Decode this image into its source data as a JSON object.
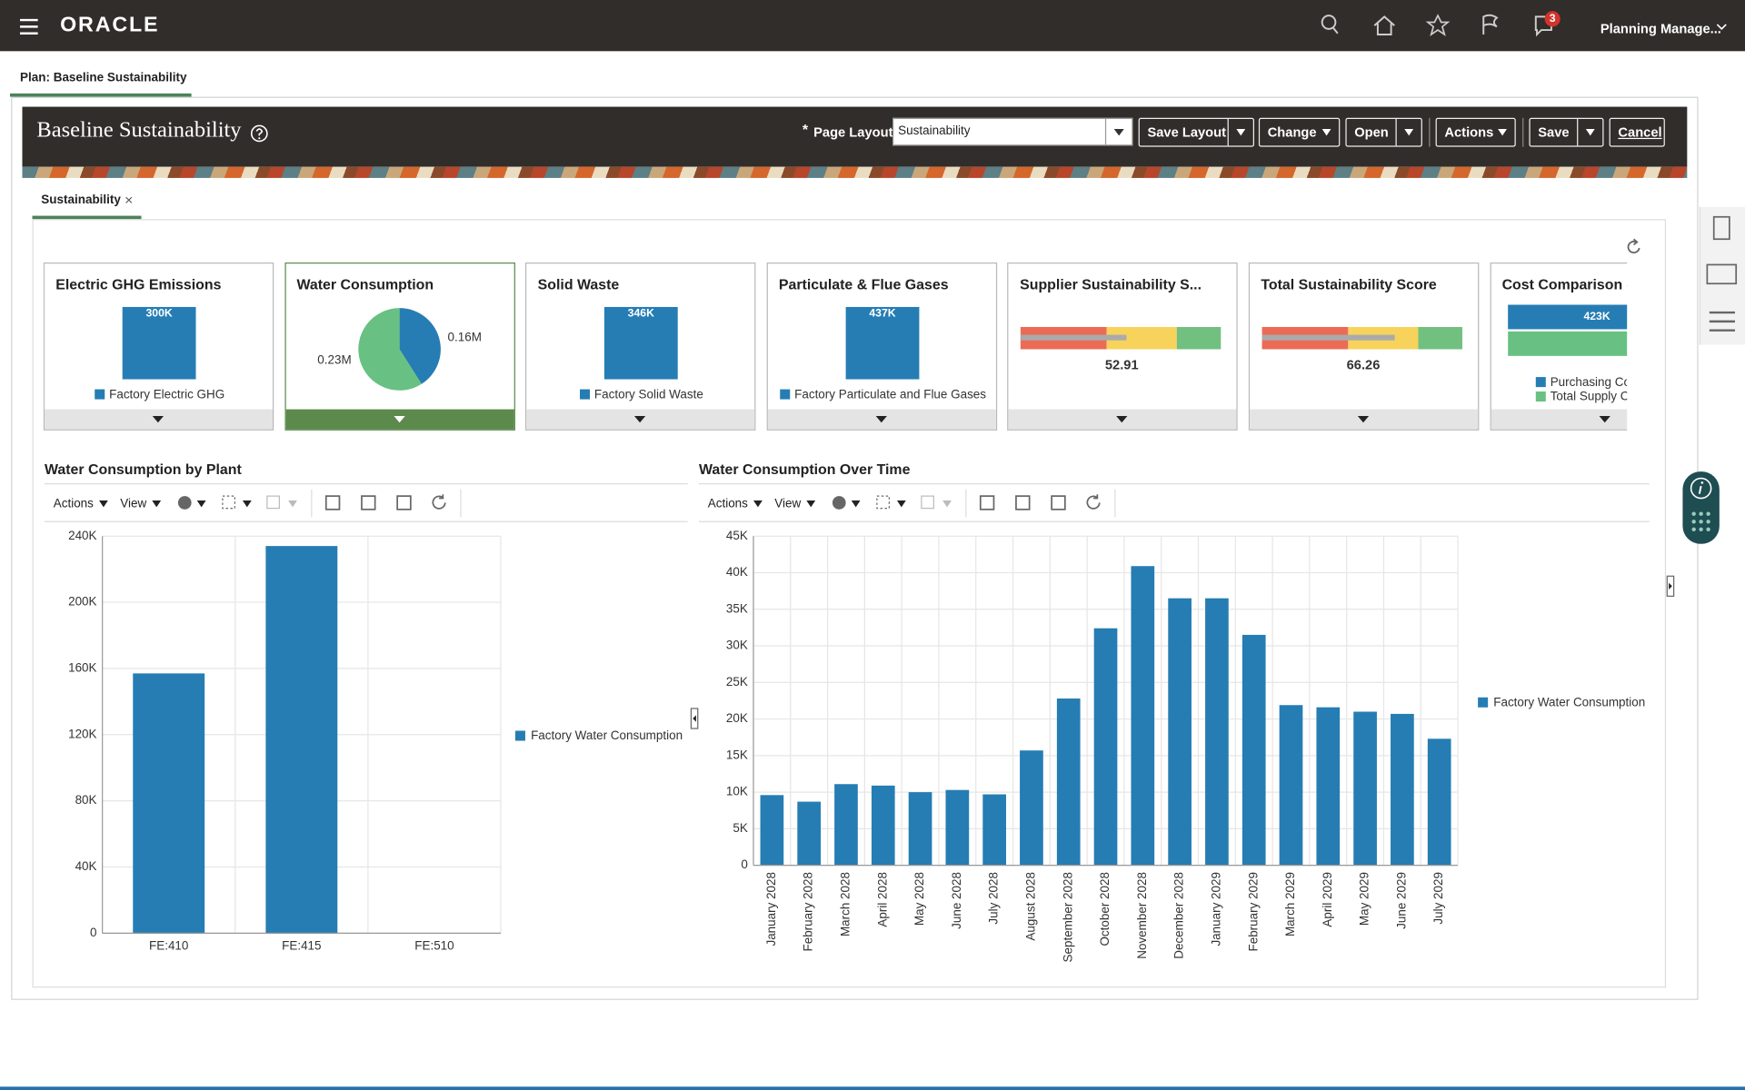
{
  "header": {
    "brand": "ORACLE",
    "notification_count": "3",
    "user": "Planning Manage..."
  },
  "page_tab": "Plan: Baseline Sustainability",
  "toolbar": {
    "title": "Baseline Sustainability",
    "required_marker": "*",
    "page_layout_label": "Page Layout",
    "page_layout_value": "Sustainability",
    "buttons": [
      "Save Layout",
      "Change",
      "Open",
      "Actions",
      "Save",
      "Cancel"
    ]
  },
  "dashboard_tab": "Sustainability",
  "tiles": [
    {
      "title": "Electric GHG Emissions",
      "type": "bar",
      "values": [
        300000
      ],
      "value_labels": [
        "300K"
      ],
      "series_names": [
        "Factory Electric GHG"
      ],
      "colors": [
        "#267db3"
      ]
    },
    {
      "title": "Water Consumption",
      "type": "pie",
      "values": [
        160000,
        230000
      ],
      "value_labels": [
        "0.16M",
        "0.23M"
      ],
      "colors": [
        "#267db3",
        "#68c182"
      ],
      "selected": true
    },
    {
      "title": "Solid Waste",
      "type": "bar",
      "values": [
        346000
      ],
      "value_labels": [
        "346K"
      ],
      "series_names": [
        "Factory Solid Waste"
      ],
      "colors": [
        "#267db3"
      ]
    },
    {
      "title": "Particulate & Flue Gases",
      "type": "bar",
      "values": [
        437000
      ],
      "value_labels": [
        "437K"
      ],
      "series_names": [
        "Factory Particulate and Flue Gases"
      ],
      "colors": [
        "#267db3"
      ]
    },
    {
      "title": "Supplier Sustainability S...",
      "type": "gauge",
      "value": 52.91,
      "scale": [
        0,
        100
      ],
      "thresholds": [
        43,
        78
      ],
      "colors": [
        "#ec6b56",
        "#f7d35c",
        "#72c07f"
      ]
    },
    {
      "title": "Total Sustainability Score",
      "type": "gauge",
      "value": 66.26,
      "scale": [
        0,
        100
      ],
      "thresholds": [
        43,
        78
      ],
      "colors": [
        "#ec6b56",
        "#f7d35c",
        "#72c07f"
      ]
    },
    {
      "title": "Cost Comparison -",
      "type": "hbar",
      "values": [
        423000,
        423000
      ],
      "value_labels": [
        "423K",
        null
      ],
      "series_names": [
        "Purchasing Cos",
        "Total Supply Ch"
      ],
      "colors": [
        "#267db3",
        "#68c182"
      ]
    }
  ],
  "charts": [
    {
      "type": "bar",
      "title": "Water Consumption by Plant",
      "menus": [
        "Actions",
        "View"
      ],
      "categories": [
        "FE:410",
        "FE:415",
        "FE:510"
      ],
      "series": [
        {
          "name": "Factory Water Consumption",
          "color": "#267db3",
          "values": [
            157000,
            234000,
            null
          ]
        }
      ],
      "ylim": [
        0,
        240000
      ],
      "yticks": [
        0,
        {
          "value": 40000,
          "label": "40K"
        },
        {
          "value": 80000,
          "label": "80K"
        },
        {
          "value": 120000,
          "label": "120K"
        },
        {
          "value": 160000,
          "label": "160K"
        },
        {
          "value": 200000,
          "label": "200K"
        },
        {
          "value": 240000,
          "label": "240K"
        }
      ],
      "grid": true
    },
    {
      "type": "bar",
      "title": "Water Consumption Over Time",
      "menus": [
        "Actions",
        "View"
      ],
      "categories": [
        "January 2028",
        "February 2028",
        "March 2028",
        "April 2028",
        "May 2028",
        "June 2028",
        "July 2028",
        "August 2028",
        "September 2028",
        "October 2028",
        "November 2028",
        "December 2028",
        "January 2029",
        "February 2029",
        "March 2029",
        "April 2029",
        "May 2029",
        "June 2029",
        "July 2029"
      ],
      "series": [
        {
          "name": "Factory Water Consumption",
          "color": "#267db3",
          "values": [
            9600,
            8700,
            11100,
            10900,
            10000,
            10300,
            9700,
            15700,
            22800,
            32400,
            40900,
            36500,
            36500,
            31500,
            21900,
            21600,
            21000,
            20700,
            17300
          ]
        }
      ],
      "ylim": [
        0,
        45000
      ],
      "yticks": [
        0,
        {
          "value": 5000,
          "label": "5K"
        },
        {
          "value": 10000,
          "label": "10K"
        },
        {
          "value": 15000,
          "label": "15K"
        },
        {
          "value": 20000,
          "label": "20K"
        },
        {
          "value": 25000,
          "label": "25K"
        },
        {
          "value": 30000,
          "label": "30K"
        },
        {
          "value": 35000,
          "label": "35K"
        },
        {
          "value": 40000,
          "label": "40K"
        },
        {
          "value": 45000,
          "label": "45K"
        }
      ],
      "grid": true
    }
  ]
}
